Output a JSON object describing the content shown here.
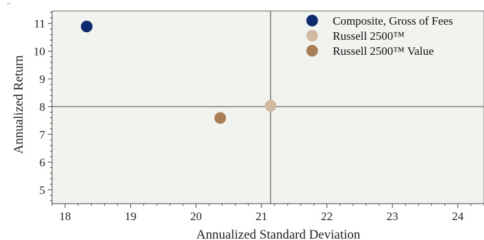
{
  "corner_label": "20",
  "chart_data": {
    "type": "scatter",
    "title": "",
    "xlabel": "Annualized Standard Deviation",
    "ylabel": "Annualized Return",
    "xlim": [
      17.8,
      24.4
    ],
    "ylim": [
      4.5,
      11.45
    ],
    "x_ticks": [
      18,
      19,
      20,
      21,
      22,
      23,
      24
    ],
    "y_ticks": [
      5,
      6,
      7,
      8,
      9,
      10,
      11
    ],
    "crosshair": {
      "x": 21.14,
      "y": 8.0
    },
    "grid": false,
    "legend_position": "top-right",
    "background": "#f1f3ef",
    "series": [
      {
        "name": "Composite, Gross of Fees",
        "color": "#0d2a6e",
        "x": 18.33,
        "y": 10.89
      },
      {
        "name": "Russell 2500™",
        "color": "#d2b9a1",
        "x": 21.14,
        "y": 8.03
      },
      {
        "name": "Russell 2500™ Value",
        "color": "#a97f57",
        "x": 20.37,
        "y": 7.59
      }
    ]
  }
}
